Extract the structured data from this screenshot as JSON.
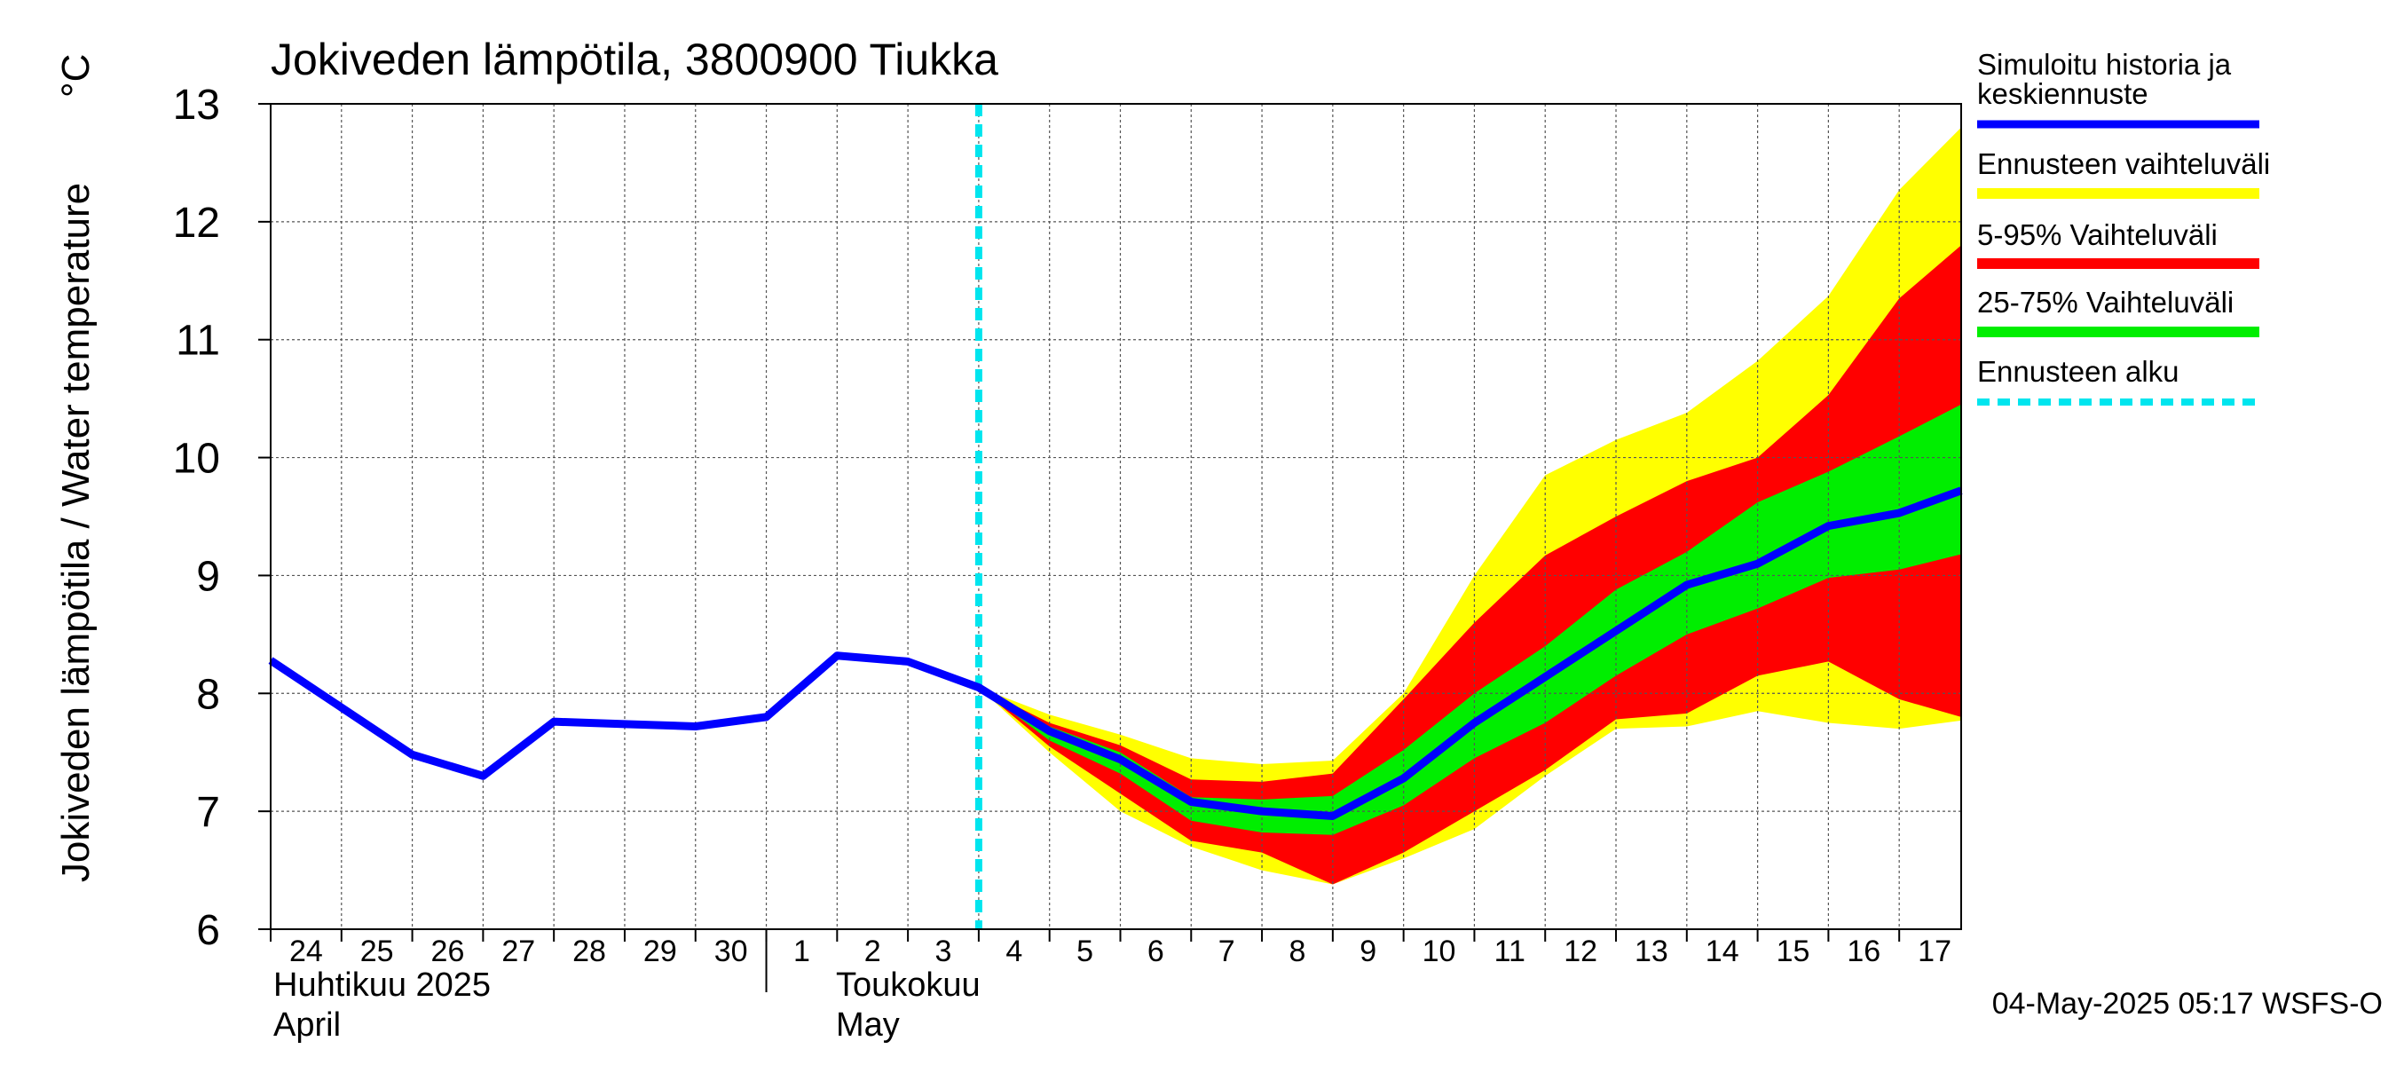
{
  "chart_data": {
    "type": "area",
    "title": "Jokiveden lämpötila, 3800900 Tiukka",
    "ylabel": "Jokiveden lämpötila / Water temperature",
    "yunit": "°C",
    "ylim": [
      6,
      13
    ],
    "yticks": [
      6,
      7,
      8,
      9,
      10,
      11,
      12,
      13
    ],
    "x_start": "2025-04-24",
    "x_end": "2025-05-17T21:00",
    "day_labels": [
      "24",
      "25",
      "26",
      "27",
      "28",
      "29",
      "30",
      "1",
      "2",
      "3",
      "4",
      "5",
      "6",
      "7",
      "8",
      "9",
      "10",
      "11",
      "12",
      "13",
      "14",
      "15",
      "16",
      "17"
    ],
    "month_labels": [
      {
        "fi": "Huhtikuu 2025",
        "en": "April",
        "start": "2025-04-24"
      },
      {
        "fi": "Toukokuu",
        "en": "May",
        "start": "2025-05-01"
      }
    ],
    "grid": true,
    "legend_position": "right",
    "forecast_start": "2025-05-04T00:00",
    "colors": {
      "history": "#0000ff",
      "full_range": "#ffff00",
      "p5_95": "#ff0000",
      "p25_75": "#00ee00",
      "forecast_start": "#00e5ee"
    },
    "series": [
      {
        "name": "Simuloitu historia ja keskiennuste",
        "x": [
          "2025-04-24",
          "2025-04-25",
          "2025-04-26",
          "2025-04-27",
          "2025-04-28",
          "2025-04-29",
          "2025-04-30",
          "2025-05-01",
          "2025-05-02",
          "2025-05-03",
          "2025-05-04",
          "2025-05-05",
          "2025-05-06",
          "2025-05-07",
          "2025-05-08",
          "2025-05-09",
          "2025-05-10",
          "2025-05-11",
          "2025-05-12",
          "2025-05-13",
          "2025-05-14",
          "2025-05-15",
          "2025-05-16",
          "2025-05-17",
          "2025-05-17T21:00"
        ],
        "values": [
          8.28,
          7.88,
          7.48,
          7.3,
          7.76,
          7.74,
          7.72,
          7.8,
          8.32,
          8.27,
          8.05,
          7.68,
          7.44,
          7.08,
          7.0,
          6.96,
          7.28,
          7.75,
          8.14,
          8.53,
          8.92,
          9.1,
          9.42,
          9.53,
          9.72
        ]
      }
    ],
    "bands": {
      "x": [
        "2025-05-04",
        "2025-05-05",
        "2025-05-06",
        "2025-05-07",
        "2025-05-08",
        "2025-05-09",
        "2025-05-10",
        "2025-05-11",
        "2025-05-12",
        "2025-05-13",
        "2025-05-14",
        "2025-05-15",
        "2025-05-16",
        "2025-05-17",
        "2025-05-17T21:00"
      ],
      "full_range": {
        "name": "Ennusteen vaihteluväli",
        "low": [
          8.05,
          7.5,
          7.0,
          6.7,
          6.5,
          6.38,
          6.6,
          6.85,
          7.3,
          7.7,
          7.72,
          7.85,
          7.75,
          7.7,
          7.77
        ],
        "high": [
          8.05,
          7.82,
          7.65,
          7.45,
          7.4,
          7.43,
          8.0,
          9.0,
          9.85,
          10.15,
          10.38,
          10.82,
          11.37,
          12.27,
          12.8
        ]
      },
      "p5_95": {
        "name": "5-95% Vaihteluväli",
        "low": [
          8.05,
          7.55,
          7.15,
          6.75,
          6.65,
          6.38,
          6.65,
          7.0,
          7.35,
          7.78,
          7.83,
          8.15,
          8.27,
          7.95,
          7.8
        ],
        "high": [
          8.05,
          7.75,
          7.56,
          7.27,
          7.25,
          7.32,
          7.95,
          8.6,
          9.17,
          9.5,
          9.8,
          10.0,
          10.53,
          11.35,
          11.8
        ]
      },
      "p25_75": {
        "name": "25-75% Vaihteluväli",
        "low": [
          8.05,
          7.6,
          7.32,
          6.92,
          6.82,
          6.8,
          7.05,
          7.45,
          7.75,
          8.15,
          8.5,
          8.72,
          8.98,
          9.05,
          9.18
        ],
        "high": [
          8.05,
          7.72,
          7.5,
          7.12,
          7.1,
          7.13,
          7.52,
          8.0,
          8.4,
          8.88,
          9.2,
          9.62,
          9.88,
          10.18,
          10.45
        ]
      }
    },
    "legend": [
      {
        "label": "Simuloitu historia ja keskiennuste",
        "key": "history"
      },
      {
        "label": "Ennusteen vaihteluväli",
        "key": "full_range"
      },
      {
        "label": "5-95% Vaihteluväli",
        "key": "p5_95"
      },
      {
        "label": "25-75% Vaihteluväli",
        "key": "p25_75"
      },
      {
        "label": "Ennusteen alku",
        "key": "forecast_start"
      }
    ],
    "footer": "04-May-2025 05:17 WSFS-O"
  }
}
